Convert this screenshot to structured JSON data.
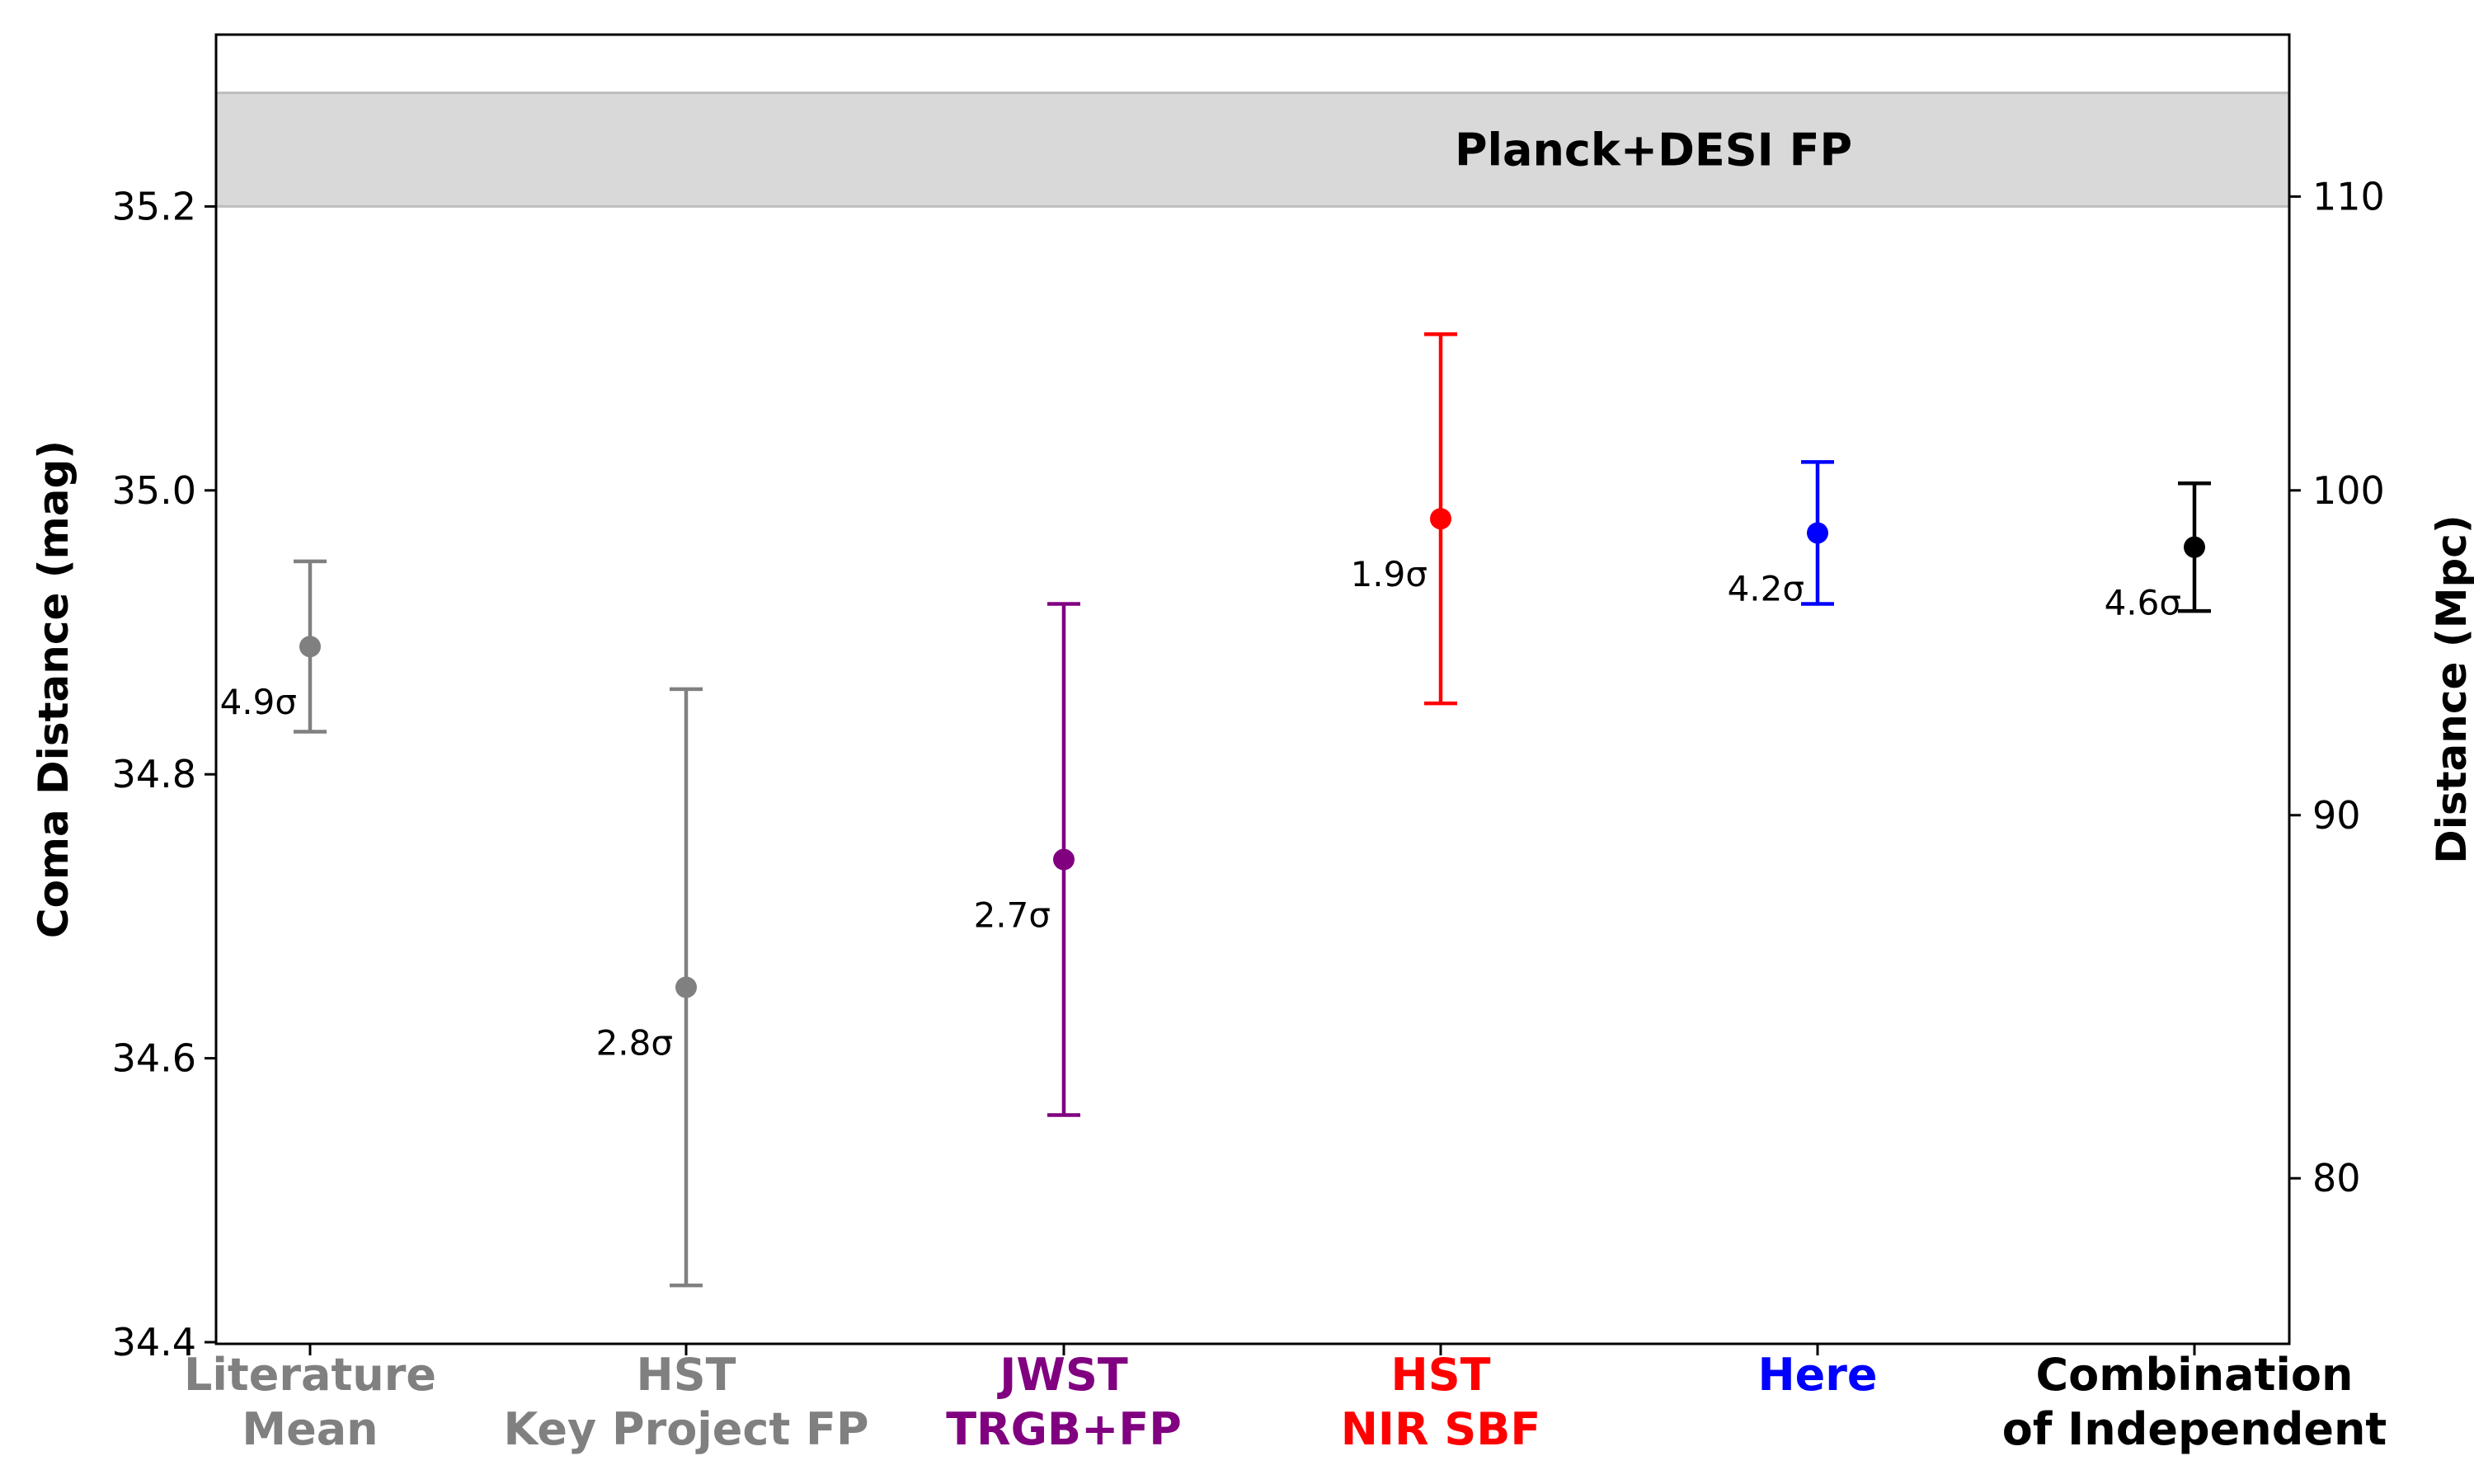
{
  "chart_data": {
    "type": "scatter",
    "title": "",
    "ylabel": "Coma Distance (mag)",
    "ylabel_right": "Distance (Mpc)",
    "ylim": [
      34.4,
      35.32
    ],
    "y_ticks": [
      34.4,
      34.6,
      34.8,
      35.0,
      35.2
    ],
    "y_tick_labels": [
      "34.4",
      "34.6",
      "34.8",
      "35.0",
      "35.2"
    ],
    "right_ticks": [
      80,
      90,
      100,
      110
    ],
    "right_tick_labels": [
      "80",
      "90",
      "100",
      "110"
    ],
    "grid": false,
    "band": {
      "label": "Planck+DESI FP",
      "y_min": 35.2,
      "y_max": 35.28,
      "color": "#d9d9d9",
      "edge_color": "#bdbdbd"
    },
    "points": [
      {
        "label_lines": [
          "Literature",
          "Mean"
        ],
        "value": 34.89,
        "err_low": 0.06,
        "err_high": 0.06,
        "tension": "4.9σ",
        "color": "#808080"
      },
      {
        "label_lines": [
          "HST",
          "Key Project FP"
        ],
        "value": 34.65,
        "err_low": 0.21,
        "err_high": 0.21,
        "tension": "2.8σ",
        "color": "#808080"
      },
      {
        "label_lines": [
          "JWST",
          "TRGB+FP"
        ],
        "value": 34.74,
        "err_low": 0.18,
        "err_high": 0.18,
        "tension": "2.7σ",
        "color": "#800080"
      },
      {
        "label_lines": [
          "HST",
          "NIR SBF"
        ],
        "value": 34.98,
        "err_low": 0.13,
        "err_high": 0.13,
        "tension": "1.9σ",
        "color": "#ff0000"
      },
      {
        "label_lines": [
          "Here"
        ],
        "value": 34.97,
        "err_low": 0.05,
        "err_high": 0.05,
        "tension": "4.2σ",
        "color": "#0000ff"
      },
      {
        "label_lines": [
          "Combination",
          "of Independent"
        ],
        "value": 34.96,
        "err_low": 0.045,
        "err_high": 0.045,
        "tension": "4.6σ",
        "color": "#000000"
      }
    ]
  }
}
